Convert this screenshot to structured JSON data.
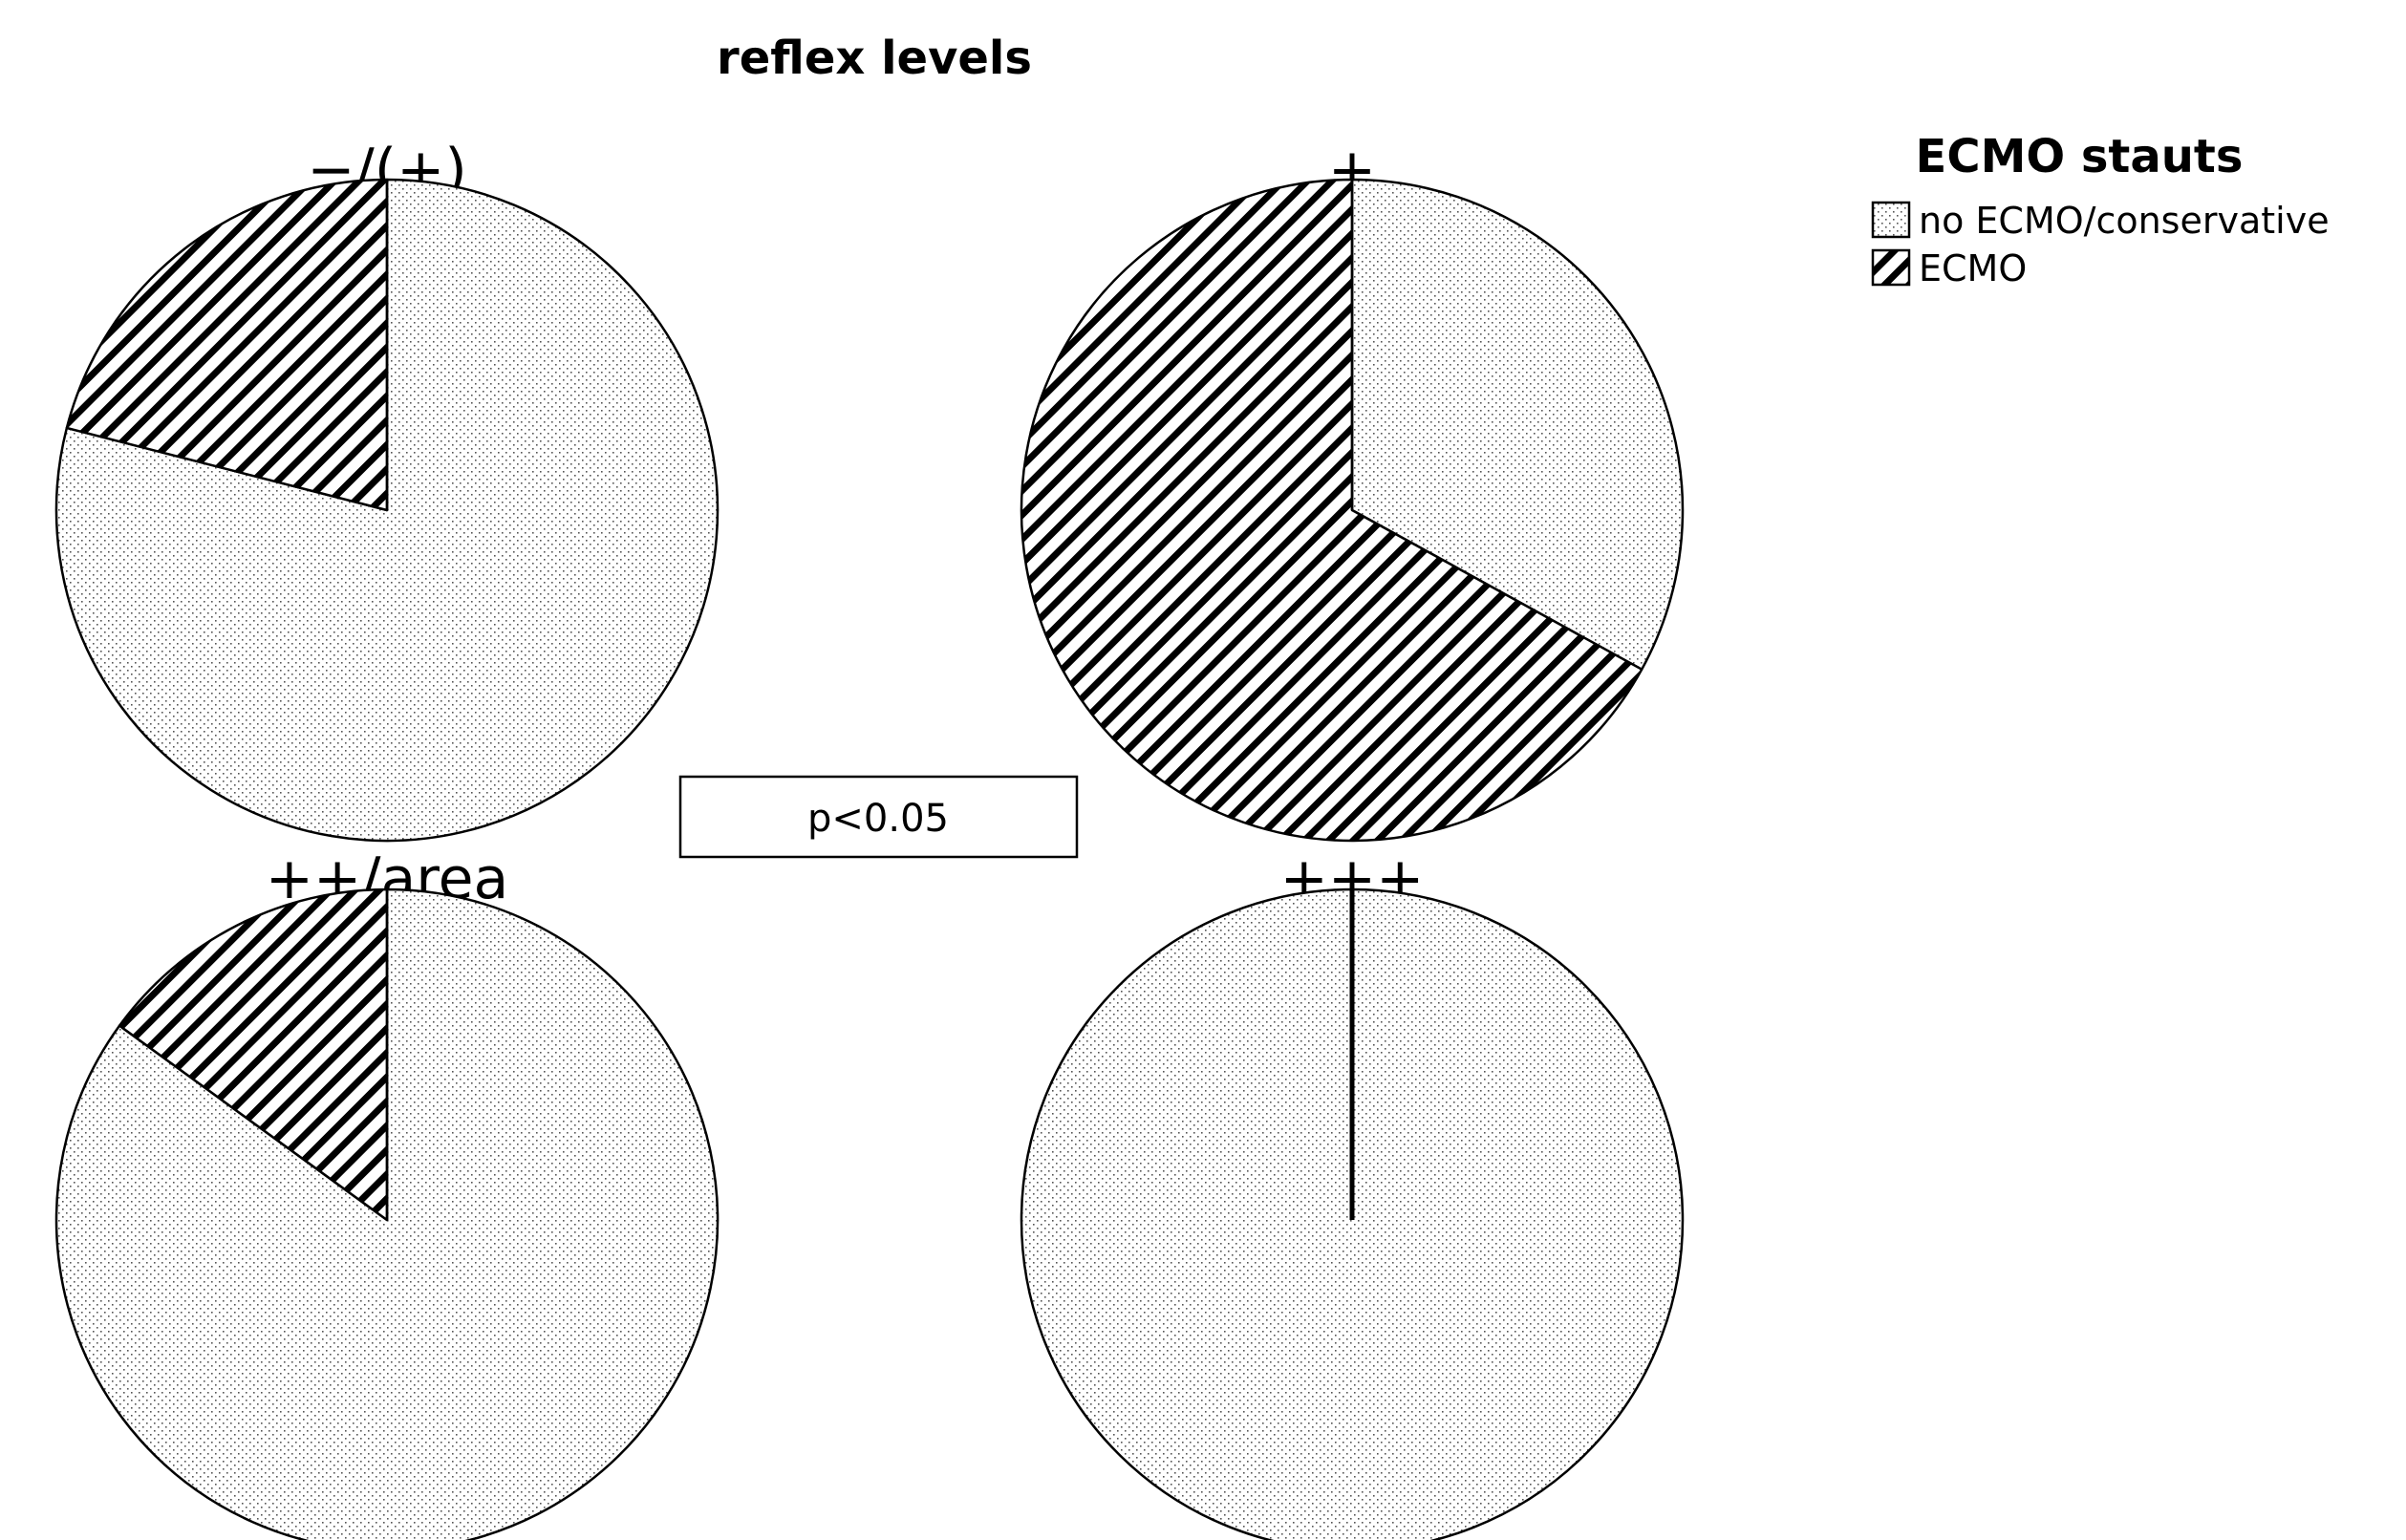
{
  "chart_data": {
    "type": "pie",
    "title": "reflex levels",
    "legend": {
      "title": "ECMO stauts",
      "position": "top-right",
      "entries": [
        {
          "label": "no ECMO/conservative",
          "pattern": "dots"
        },
        {
          "label": "ECMO",
          "pattern": "hatch"
        }
      ]
    },
    "categories": [
      "no ECMO/conservative",
      "ECMO"
    ],
    "pies": [
      {
        "title": "−/(+)",
        "values": [
          0.79,
          0.21
        ]
      },
      {
        "title": "+",
        "values": [
          0.33,
          0.67
        ]
      },
      {
        "title": "++/area",
        "values": [
          0.85,
          0.15
        ]
      },
      {
        "title": "+++",
        "values": [
          1.0,
          0.0
        ]
      }
    ],
    "annotation": "p<0.05"
  }
}
